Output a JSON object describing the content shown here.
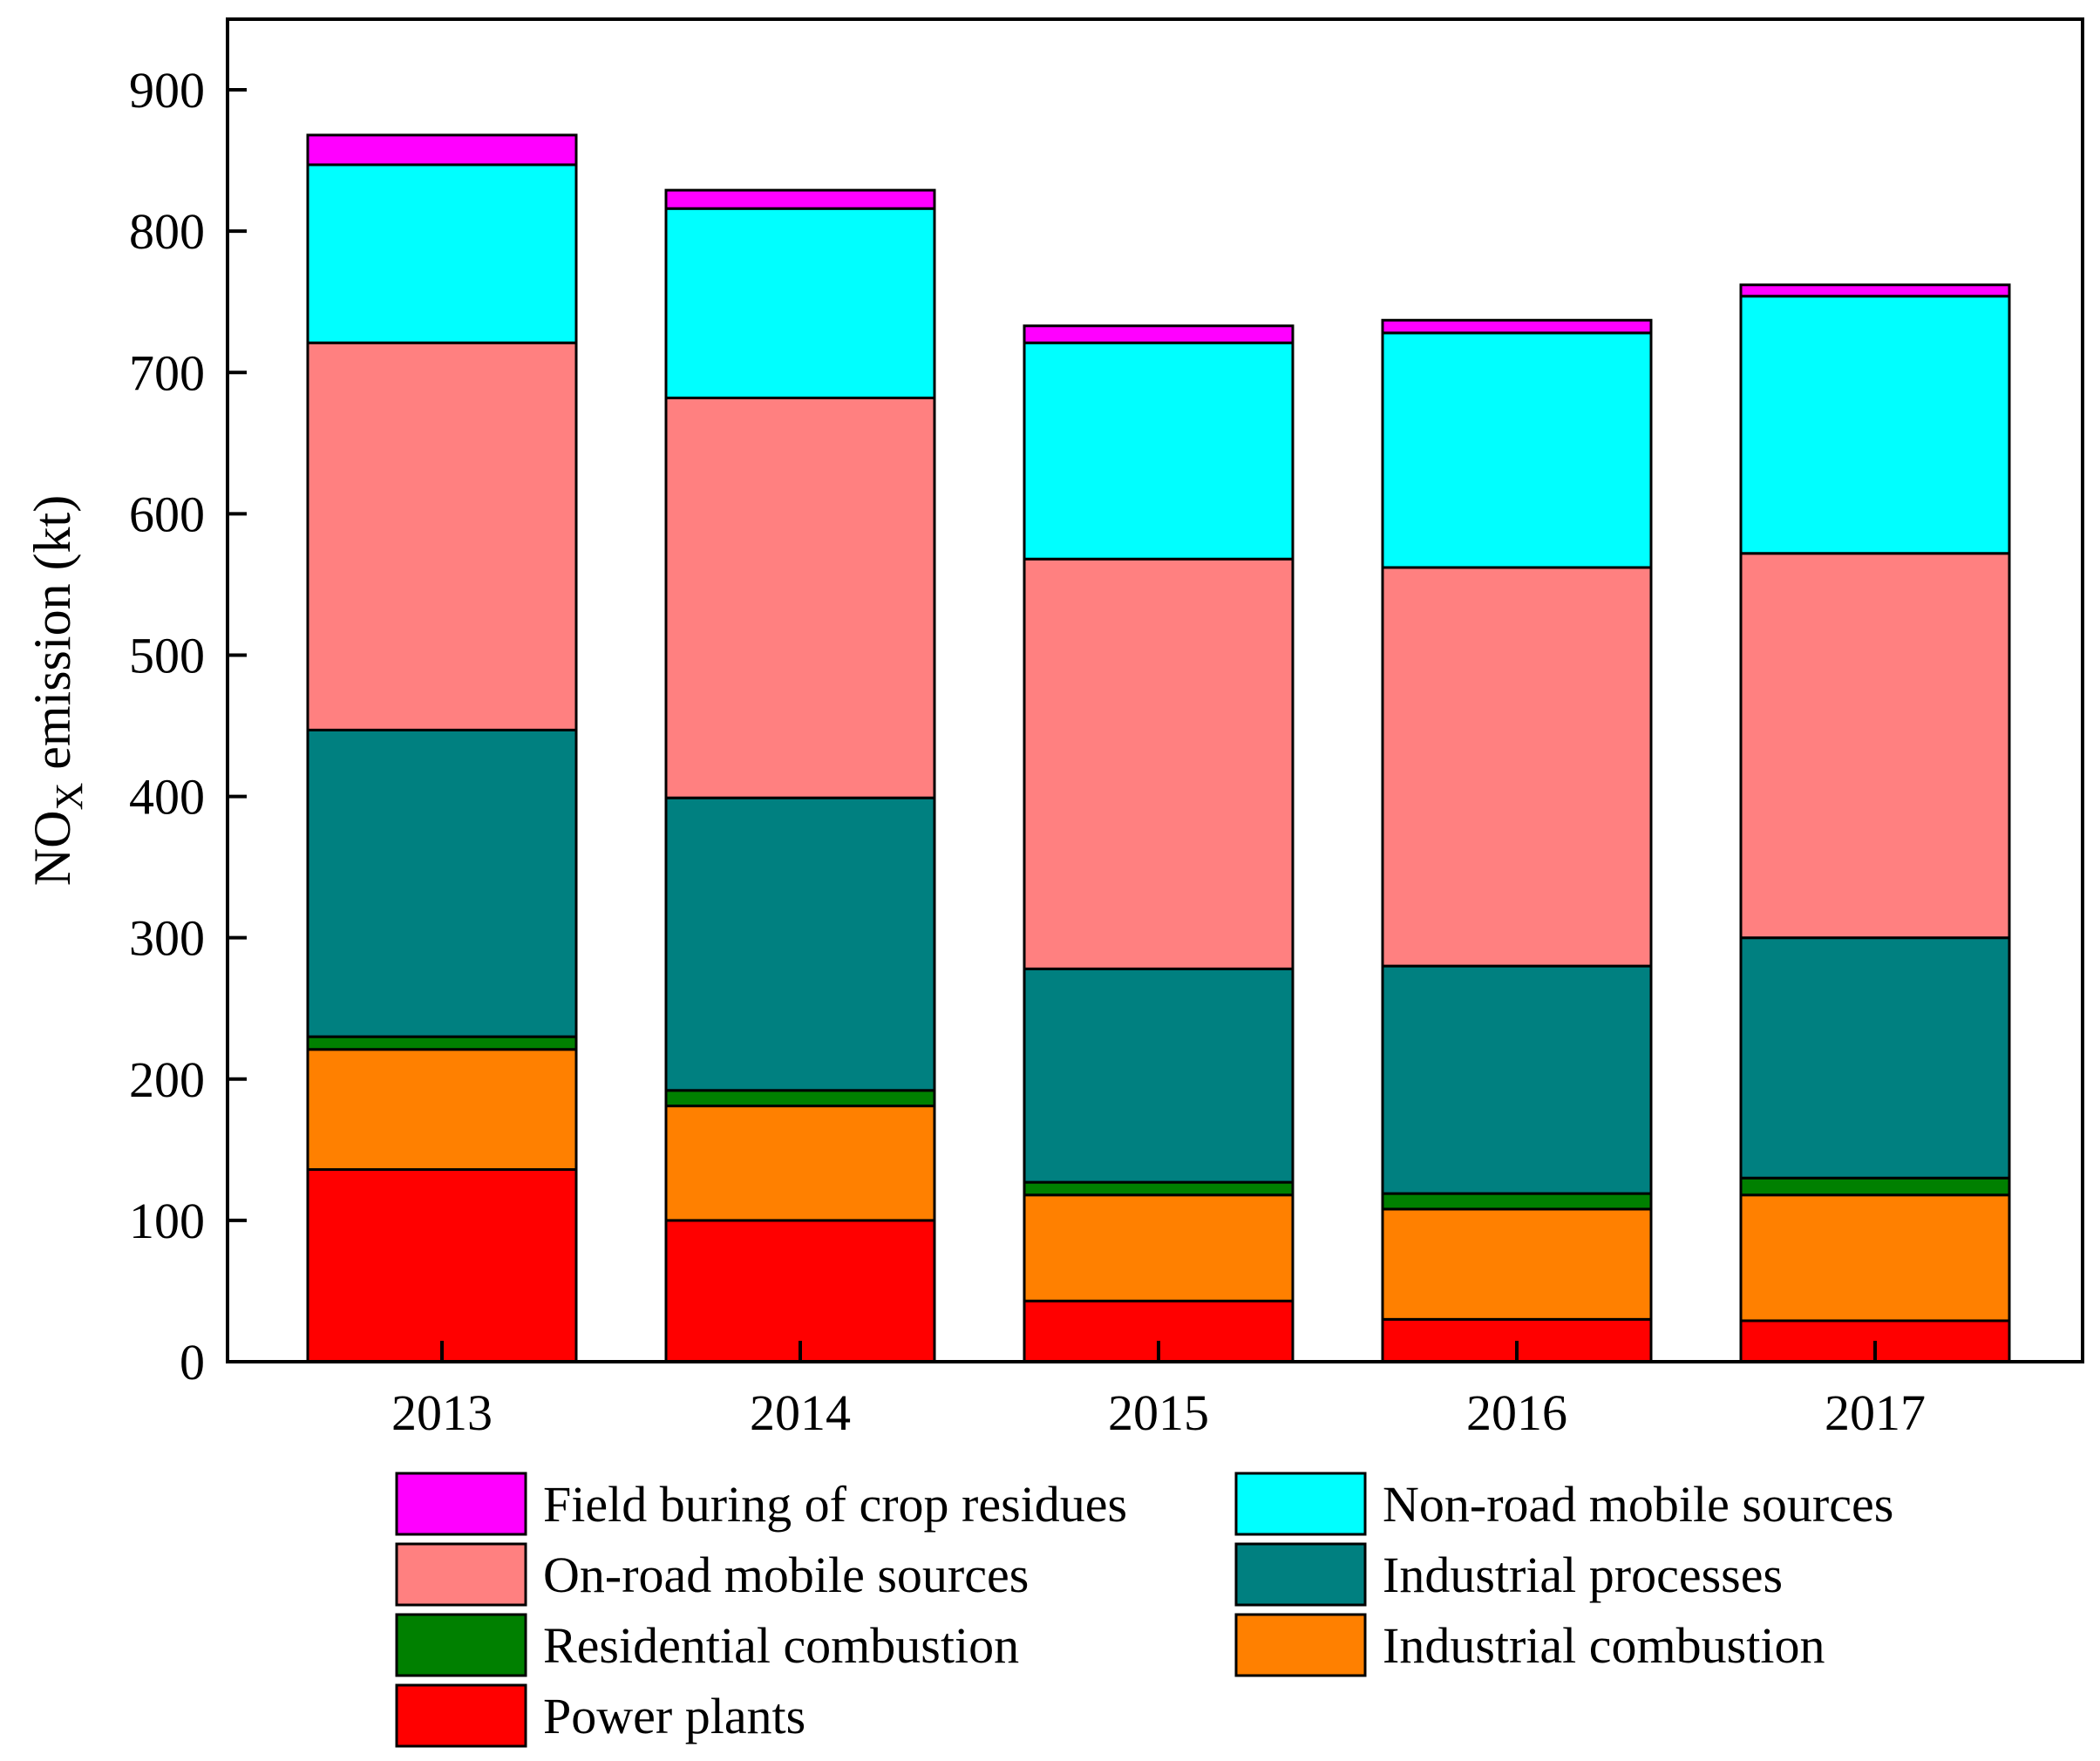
{
  "chart_data": {
    "type": "bar",
    "stacked": true,
    "title": "",
    "xlabel": "",
    "ylabel": {
      "base": "NO",
      "subscript": "X",
      "rest": " emission (kt)"
    },
    "ylim": [
      0,
      950
    ],
    "yticks": [
      0,
      100,
      200,
      300,
      400,
      500,
      600,
      700,
      800,
      900
    ],
    "grid": false,
    "legend_position": "bottom",
    "categories": [
      "2013",
      "2014",
      "2015",
      "2016",
      "2017"
    ],
    "series": [
      {
        "name": "Power plants",
        "color": "#ff0000",
        "values": [
          136,
          100,
          43,
          30,
          29
        ]
      },
      {
        "name": "Industrial combustion",
        "color": "#ff8000",
        "values": [
          85,
          81,
          75,
          78,
          89
        ]
      },
      {
        "name": "Residential combustion",
        "color": "#008000",
        "values": [
          9,
          11,
          9,
          11,
          12
        ]
      },
      {
        "name": "Industrial processes",
        "color": "#008080",
        "values": [
          217,
          207,
          151,
          161,
          170
        ]
      },
      {
        "name": "On-road mobile sources",
        "color": "#ff8080",
        "values": [
          274,
          283,
          290,
          282,
          272
        ]
      },
      {
        "name": "Non-road mobile sources",
        "color": "#00ffff",
        "values": [
          126,
          134,
          153,
          166,
          182
        ]
      },
      {
        "name": "Field buring of crop residues",
        "color": "#ff00ff",
        "values": [
          21,
          13,
          12,
          9,
          8
        ]
      }
    ],
    "legend_order": [
      "Field buring of crop residues",
      "Non-road mobile sources",
      "On-road mobile sources",
      "Industrial processes",
      "Residential combustion",
      "Industrial combustion",
      "Power plants"
    ]
  }
}
